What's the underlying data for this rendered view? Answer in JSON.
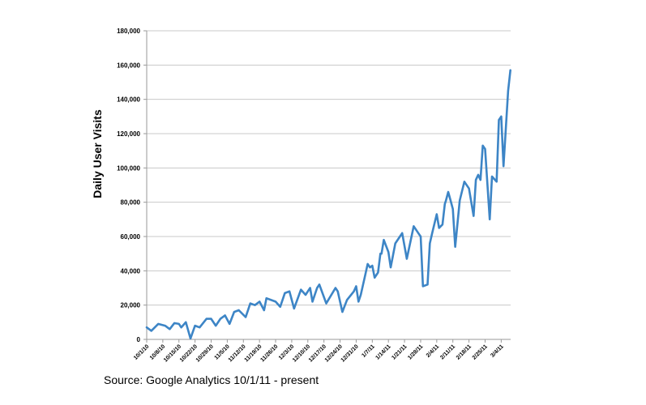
{
  "chart_data": {
    "type": "line",
    "title": "",
    "xlabel": "",
    "ylabel": "Daily User Visits",
    "x_unit": "days since 10/1/10",
    "ylim": [
      0,
      180000
    ],
    "yticks": [
      "0",
      "20,000",
      "40,000",
      "60,000",
      "80,000",
      "100,000",
      "120,000",
      "140,000",
      "160,000",
      "180,000"
    ],
    "xtick_labels": [
      "10/1/10",
      "10/8/10",
      "10/15/10",
      "10/22/10",
      "10/29/10",
      "11/5/10",
      "11/12/10",
      "11/19/10",
      "11/26/10",
      "12/3/10",
      "12/10/10",
      "12/17/10",
      "12/24/10",
      "12/31/10",
      "1/7/11",
      "1/14/11",
      "1/21/11",
      "1/28/11",
      "2/4/11",
      "2/11/11",
      "2/18/11",
      "2/25/11",
      "3/4/11"
    ],
    "grid": true,
    "color": "#3d85c6",
    "series": [
      {
        "name": "Daily User Visits",
        "x": [
          0,
          2,
          5,
          8,
          10,
          12,
          14,
          15,
          17,
          19,
          21,
          23,
          26,
          28,
          30,
          32,
          34,
          36,
          38,
          40,
          43,
          45,
          47,
          49,
          51,
          52,
          56,
          58,
          60,
          62,
          64,
          67,
          69,
          71,
          72,
          74,
          75,
          78,
          82,
          83,
          85,
          87,
          90,
          91,
          92,
          93,
          95,
          96,
          97,
          98,
          99,
          100.5,
          101.5,
          102,
          103,
          105,
          106,
          108,
          110,
          111,
          113,
          116,
          118,
          119,
          120,
          122,
          123,
          124,
          126,
          127,
          128.5,
          129.5,
          130,
          131,
          132,
          133,
          134,
          136,
          138,
          140,
          142,
          143,
          144,
          145,
          146,
          147,
          149,
          150,
          152,
          153,
          154,
          155,
          157,
          158
        ],
        "values": [
          7000,
          5000,
          9000,
          8000,
          6000,
          9500,
          9000,
          7000,
          10000,
          500,
          8000,
          7000,
          12000,
          12000,
          8000,
          12000,
          14000,
          9000,
          16000,
          17000,
          13000,
          21000,
          20000,
          22000,
          17000,
          24000,
          22000,
          19000,
          27000,
          28000,
          18000,
          29000,
          26000,
          30000,
          22000,
          30000,
          32000,
          21000,
          30000,
          28000,
          16000,
          23000,
          28000,
          31000,
          22000,
          26000,
          38000,
          44000,
          42000,
          43000,
          36000,
          39000,
          50000,
          50000,
          58000,
          51000,
          42000,
          56000,
          60000,
          62000,
          47000,
          66000,
          62000,
          60000,
          31000,
          32000,
          56000,
          62000,
          73000,
          65000,
          67000,
          79000,
          81000,
          86000,
          81000,
          76000,
          54000,
          81000,
          92000,
          88000,
          72000,
          93000,
          96000,
          93000,
          113000,
          111000,
          70000,
          95000,
          92000,
          128000,
          130000,
          101000,
          145000,
          157000
        ]
      }
    ]
  },
  "source_note": "Source: Google Analytics 10/1/11 - present"
}
